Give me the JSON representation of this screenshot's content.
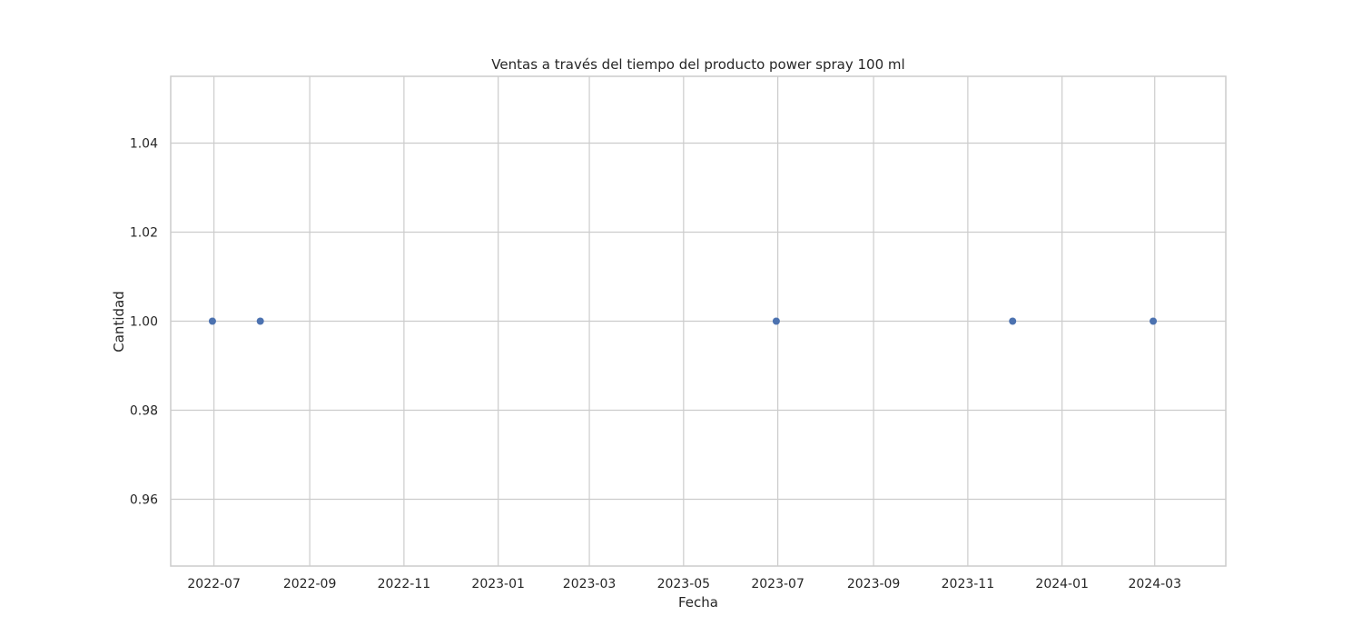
{
  "chart_data": {
    "type": "scatter",
    "title": "Ventas a través del tiempo del producto power spray 100 ml",
    "xlabel": "Fecha",
    "ylabel": "Cantidad",
    "x_ticks": [
      "2022-07",
      "2022-09",
      "2022-11",
      "2023-01",
      "2023-03",
      "2023-05",
      "2023-07",
      "2023-09",
      "2023-11",
      "2024-01",
      "2024-03"
    ],
    "y_ticks": [
      "0.96",
      "0.98",
      "1.00",
      "1.02",
      "1.04"
    ],
    "xlim": [
      "2022-06-03",
      "2024-04-16"
    ],
    "ylim": [
      0.945,
      1.055
    ],
    "grid": true,
    "marker_color": "#4c72b0",
    "series": [
      {
        "x": [
          "2022-06-30",
          "2022-07-31",
          "2023-06-30",
          "2023-11-30",
          "2024-02-29"
        ],
        "y": [
          1,
          1,
          1,
          1,
          1
        ]
      }
    ]
  }
}
